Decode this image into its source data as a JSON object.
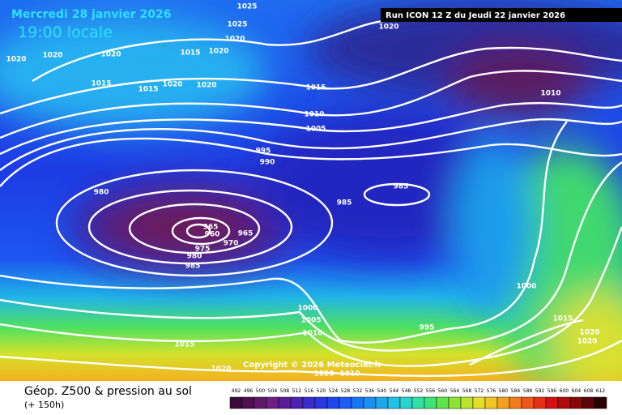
{
  "header": {
    "date": "Mercredi 28 janvier 2026",
    "time": "19:00 locale",
    "run": "Run ICON 12 Z du Jeudi 22 janvier 2026"
  },
  "footer": {
    "title": "Géop. Z500 & pression au sol",
    "lead": "(+ 150h)",
    "copyright": "Copyright © 2026 Meteociel.fr"
  },
  "isobar_labels": [
    1025,
    1025,
    1020,
    1020,
    1020,
    1020,
    1015,
    1020,
    1015,
    1015,
    1020,
    1020,
    1015,
    1010,
    1005,
    1010,
    995,
    990,
    980,
    985,
    985,
    965,
    960,
    965,
    970,
    975,
    980,
    985,
    1000,
    1005,
    1010,
    995,
    1000,
    1015,
    1020,
    1020,
    1015,
    1020,
    1020,
    1010,
    1020
  ],
  "legend": {
    "labels": [
      492,
      496,
      500,
      504,
      508,
      512,
      516,
      520,
      524,
      528,
      532,
      536,
      540,
      544,
      548,
      552,
      556,
      560,
      564,
      568,
      572,
      576,
      580,
      584,
      588,
      592,
      596,
      600,
      604,
      608,
      612
    ],
    "colors": [
      "#3a0a3a",
      "#4e1050",
      "#621868",
      "#6e2080",
      "#5a1c9a",
      "#4a22b4",
      "#3a2ccc",
      "#2a36e0",
      "#1e46ee",
      "#1a5cf4",
      "#1876f4",
      "#1890f0",
      "#1ca8ea",
      "#22c0e4",
      "#28d4d0",
      "#30e0a8",
      "#3ce478",
      "#60e448",
      "#8ee434",
      "#bce42c",
      "#e4e028",
      "#f4c424",
      "#f4a020",
      "#f07c1c",
      "#ec5618",
      "#e43014",
      "#d41010",
      "#b00c0c",
      "#880808",
      "#5a0606",
      "#2a0202"
    ]
  }
}
